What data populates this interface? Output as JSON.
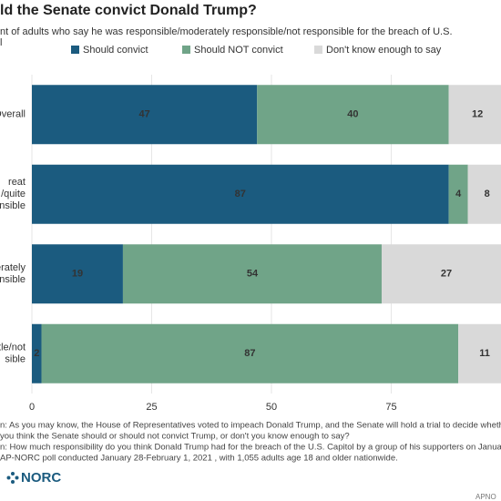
{
  "chart_data": {
    "type": "stacked-bar-horizontal",
    "title": "ld the Senate convict Donald Trump?",
    "subtitle": [
      "nt of adults who say he was responsible/moderately responsible/not responsible for the breach of U.S.",
      "l"
    ],
    "categories": [
      [
        "Overall"
      ],
      [
        "reat",
        "/quite",
        "nsible"
      ],
      [
        "derately",
        "onsible"
      ],
      [
        "tle/not",
        "sible"
      ]
    ],
    "series": [
      {
        "name": "Should convict",
        "color": "#1b5b7f",
        "values": [
          47,
          87,
          19,
          2
        ]
      },
      {
        "name": "Should NOT convict",
        "color": "#70a488",
        "values": [
          40,
          4,
          54,
          87
        ]
      },
      {
        "name": "Don't know enough to say",
        "color": "#d9d9d9",
        "values": [
          12,
          8,
          27,
          11
        ]
      }
    ],
    "xlim": [
      0,
      100
    ],
    "xticks": [
      0,
      25,
      50,
      75
    ],
    "notes": [
      "n: As you may know, the House of Representatives voted to impeach Donald Trump, and the Senate will hold a trial to decide whether to c",
      "you think the Senate should or should not convict Trump, or don't you know enough to say?",
      "n: How much responsibility do you think Donald Trump had for the breach of the U.S. Capitol by a group of his supporters on January 6th?",
      "AP-NORC poll conducted January 28-February 1, 2021 , with 1,055 adults age 18 and older nationwide."
    ],
    "logo": "NORC",
    "credit": "APNO"
  }
}
